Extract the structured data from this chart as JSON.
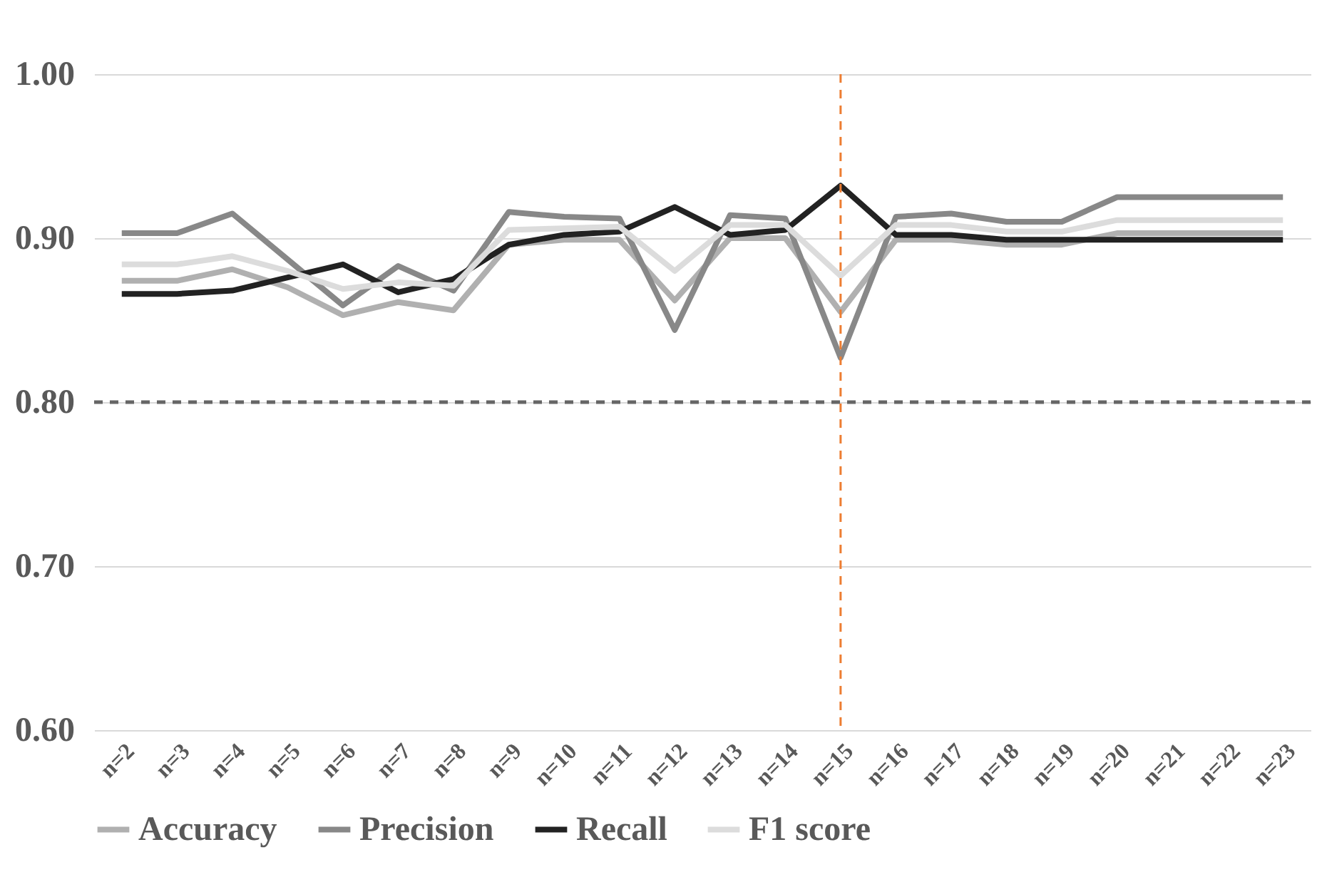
{
  "chart_data": {
    "type": "line",
    "categories": [
      "n=2",
      "n=3",
      "n=4",
      "n=5",
      "n=6",
      "n=7",
      "n=8",
      "n=9",
      "n=10",
      "n=11",
      "n=12",
      "n=13",
      "n=14",
      "n=15",
      "n=16",
      "n=17",
      "n=18",
      "n=19",
      "n=20",
      "n=21",
      "n=22",
      "n=23"
    ],
    "series": [
      {
        "name": "Accuracy",
        "color": "#b0b0b0",
        "values": [
          0.874,
          0.874,
          0.881,
          0.87,
          0.853,
          0.861,
          0.856,
          0.896,
          0.899,
          0.899,
          0.862,
          0.9,
          0.9,
          0.855,
          0.899,
          0.899,
          0.896,
          0.896,
          0.903,
          0.903,
          0.903,
          0.903
        ]
      },
      {
        "name": "Precision",
        "color": "#888888",
        "values": [
          0.903,
          0.903,
          0.915,
          0.887,
          0.859,
          0.883,
          0.868,
          0.916,
          0.913,
          0.912,
          0.844,
          0.914,
          0.912,
          0.827,
          0.913,
          0.915,
          0.91,
          0.91,
          0.925,
          0.925,
          0.925,
          0.925
        ]
      },
      {
        "name": "Recall",
        "color": "#222222",
        "values": [
          0.866,
          0.866,
          0.868,
          0.876,
          0.884,
          0.867,
          0.875,
          0.896,
          0.902,
          0.904,
          0.919,
          0.902,
          0.905,
          0.932,
          0.902,
          0.902,
          0.899,
          0.899,
          0.899,
          0.899,
          0.899,
          0.899
        ]
      },
      {
        "name": "F1 score",
        "color": "#dcdcdc",
        "values": [
          0.884,
          0.884,
          0.889,
          0.88,
          0.869,
          0.873,
          0.871,
          0.905,
          0.906,
          0.907,
          0.88,
          0.908,
          0.908,
          0.877,
          0.908,
          0.908,
          0.904,
          0.904,
          0.911,
          0.911,
          0.911,
          0.911
        ]
      }
    ],
    "ylim": [
      0.6,
      1.0
    ],
    "yticks": [
      {
        "value": 0.6,
        "label": "0.60"
      },
      {
        "value": 0.7,
        "label": "0.70"
      },
      {
        "value": 0.8,
        "label": "0.80"
      },
      {
        "value": 0.9,
        "label": "0.90"
      },
      {
        "value": 1.0,
        "label": "1.00"
      }
    ],
    "ref_lines": [
      {
        "axis": "y",
        "value": 0.8,
        "color": "#666666",
        "line_style": "dashed"
      },
      {
        "axis": "x",
        "value": "n=15",
        "color": "#ed7d31",
        "line_style": "dashed"
      }
    ],
    "grid": "y",
    "legend": "bottom",
    "line_style": "solid",
    "marker": "none"
  }
}
